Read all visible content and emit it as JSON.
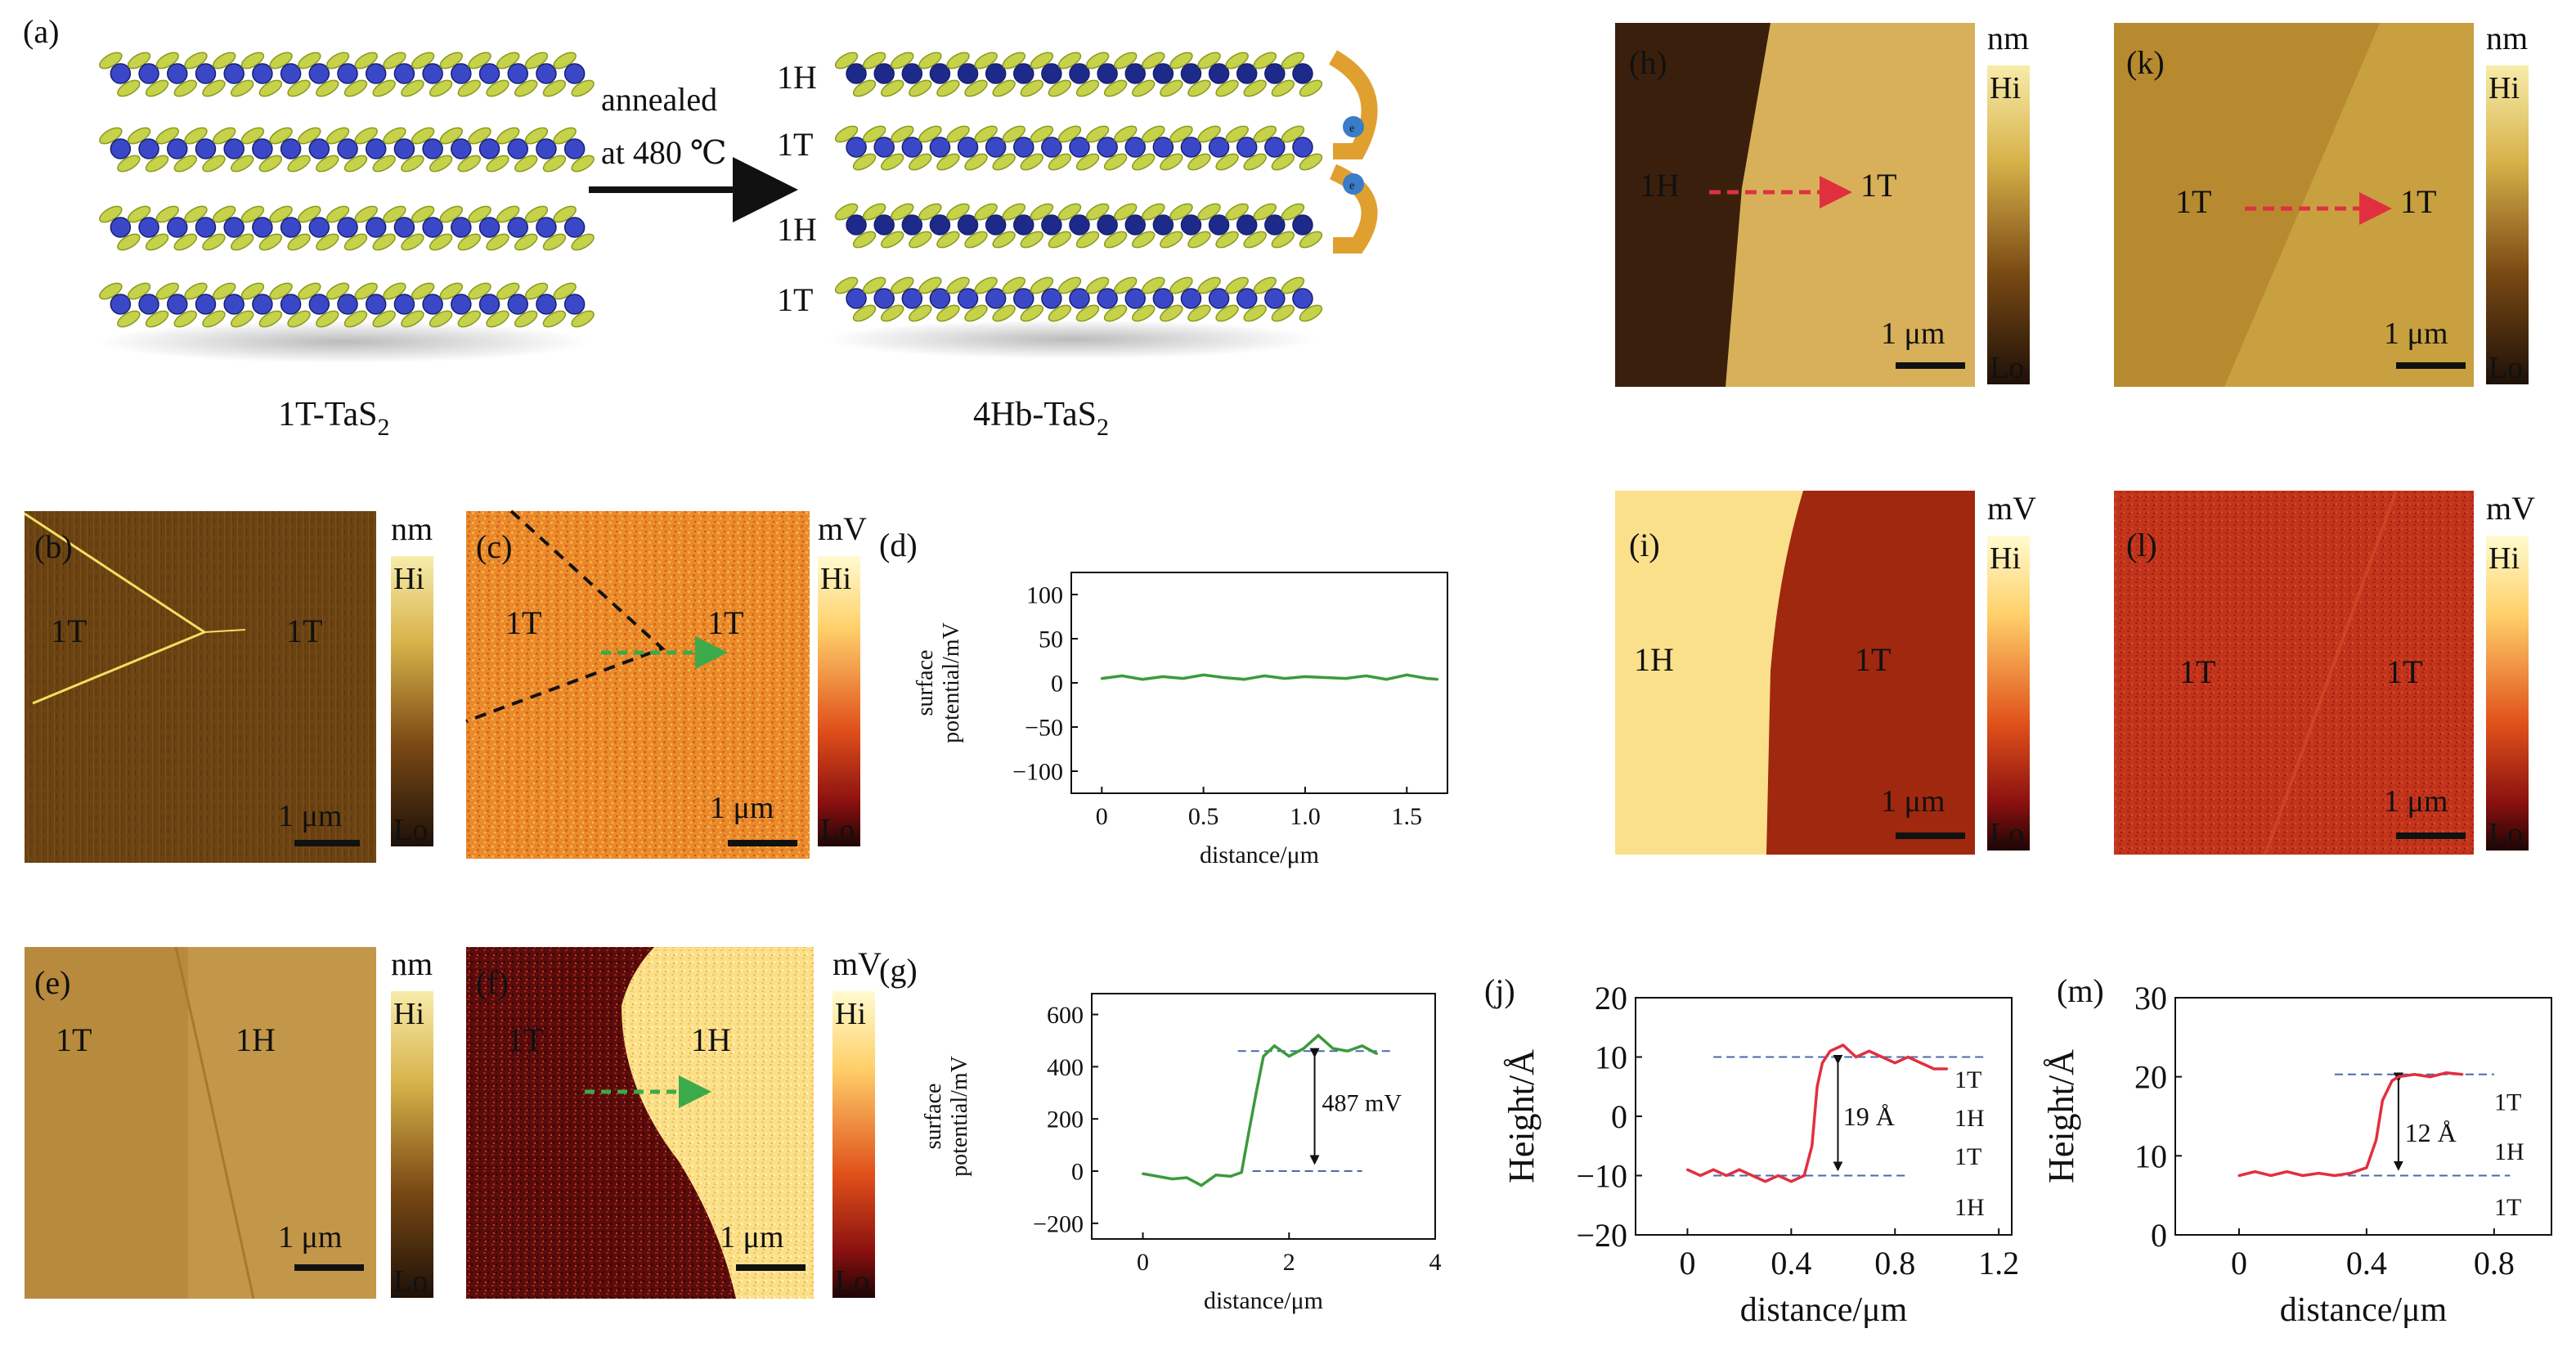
{
  "panel_labels": {
    "a": "(a)",
    "b": "(b)",
    "c": "(c)",
    "d": "(d)",
    "e": "(e)",
    "f": "(f)",
    "g": "(g)",
    "h": "(h)",
    "i": "(i)",
    "j": "(j)",
    "k": "(k)",
    "l": "(l)",
    "m": "(m)"
  },
  "panel_a": {
    "left_caption": "1T-TaS",
    "right_caption": "4Hb-TaS",
    "subscript": "2",
    "arrow_line1": "annealed",
    "arrow_line2": "at 480 ℃",
    "layer_labels": [
      "1H",
      "1T",
      "1H",
      "1T"
    ],
    "electron": "e"
  },
  "scales": {
    "unit_nm": "nm",
    "unit_mv": "mV",
    "hi": "Hi",
    "lo": "Lo",
    "scalebar": "1 μm"
  },
  "colors": {
    "afm_dark": "#2a1808",
    "afm_mid": "#9a6a1c",
    "afm_light": "#f5e39a",
    "kpfm_dark": "#2a0606",
    "kpfm_mid": "#d44a12",
    "kpfm_light": "#fff5b0",
    "green_line": "#3c9a3c",
    "red_line": "#e03040",
    "purple_band": "#d9b6e0",
    "green_band": "#dff0d0"
  },
  "image_labels": {
    "b": [
      "1T",
      "1T"
    ],
    "c": [
      "1T",
      "1T"
    ],
    "e": [
      "1T",
      "1H"
    ],
    "f": [
      "1T",
      "1H"
    ],
    "h": [
      "1H",
      "1T"
    ],
    "i": [
      "1H",
      "1T"
    ],
    "k": [
      "1T",
      "1T"
    ],
    "l": [
      "1T",
      "1T"
    ]
  },
  "chart_data": [
    {
      "id": "d",
      "type": "line",
      "xlabel": "distance/μm",
      "ylabel": [
        "surface",
        "potential/mV"
      ],
      "xlim": [
        -0.15,
        1.7
      ],
      "ylim": [
        -125,
        125
      ],
      "xticks": [
        0,
        0.5,
        1.0,
        1.5
      ],
      "xticklabels": [
        "0",
        "0.5",
        "1.0",
        "1.5"
      ],
      "yticks": [
        100,
        50,
        0,
        -50,
        -100
      ],
      "yticklabels": [
        "100",
        "50",
        "0",
        "−50",
        "−100"
      ],
      "series": [
        {
          "x": [
            0,
            0.1,
            0.2,
            0.3,
            0.4,
            0.5,
            0.6,
            0.7,
            0.8,
            0.9,
            1.0,
            1.1,
            1.2,
            1.3,
            1.4,
            1.5,
            1.6,
            1.65
          ],
          "y": [
            5,
            8,
            4,
            7,
            5,
            9,
            6,
            4,
            8,
            5,
            7,
            6,
            5,
            8,
            4,
            9,
            5,
            4
          ]
        }
      ]
    },
    {
      "id": "g",
      "type": "line",
      "xlabel": "distance/μm",
      "ylabel": [
        "surface",
        "potential/mV"
      ],
      "xlim": [
        -0.7,
        4
      ],
      "ylim": [
        -260,
        680
      ],
      "xticks": [
        0,
        2,
        4
      ],
      "xticklabels": [
        "0",
        "2",
        "4"
      ],
      "yticks": [
        600,
        400,
        200,
        0,
        -200
      ],
      "yticklabels": [
        "600",
        "400",
        "200",
        "0",
        "−200"
      ],
      "annotation": "487 mV",
      "series": [
        {
          "x": [
            0,
            0.2,
            0.4,
            0.6,
            0.8,
            1.0,
            1.2,
            1.35,
            1.45,
            1.55,
            1.65,
            1.8,
            2.0,
            2.2,
            2.4,
            2.6,
            2.8,
            3.0,
            3.2
          ],
          "y": [
            -10,
            -20,
            -30,
            -25,
            -55,
            -15,
            -20,
            -5,
            150,
            300,
            440,
            480,
            440,
            470,
            520,
            470,
            460,
            480,
            450
          ]
        }
      ]
    },
    {
      "id": "j",
      "type": "line",
      "xlabel": "distance/μm",
      "ylabel": "Height/Å",
      "xlim": [
        -0.2,
        1.25
      ],
      "ylim": [
        -20,
        20
      ],
      "xticks": [
        0,
        0.4,
        0.8,
        1.2
      ],
      "xticklabels": [
        "0",
        "0.4",
        "0.8",
        "1.2"
      ],
      "yticks": [
        20,
        10,
        0,
        -10,
        -20
      ],
      "yticklabels": [
        "20",
        "10",
        "0",
        "−10",
        "−20"
      ],
      "annotation": "19 Å",
      "bands": [
        "1T",
        "1H",
        "1T",
        "1H"
      ],
      "series": [
        {
          "x": [
            0,
            0.05,
            0.1,
            0.15,
            0.2,
            0.25,
            0.3,
            0.35,
            0.4,
            0.45,
            0.48,
            0.5,
            0.52,
            0.55,
            0.6,
            0.65,
            0.7,
            0.75,
            0.8,
            0.85,
            0.9,
            0.95,
            1.0
          ],
          "y": [
            -9,
            -10,
            -9,
            -10,
            -9,
            -10,
            -11,
            -10,
            -11,
            -10,
            -5,
            5,
            9,
            11,
            12,
            10,
            11,
            10,
            9,
            10,
            9,
            8,
            8
          ]
        }
      ]
    },
    {
      "id": "m",
      "type": "line",
      "xlabel": "distance/μm",
      "ylabel": "Height/Å",
      "xlim": [
        -0.2,
        0.98
      ],
      "ylim": [
        0,
        30
      ],
      "xticks": [
        0,
        0.4,
        0.8
      ],
      "xticklabels": [
        "0",
        "0.4",
        "0.8"
      ],
      "yticks": [
        30,
        20,
        10,
        0
      ],
      "yticklabels": [
        "30",
        "20",
        "10",
        "0"
      ],
      "annotation": "12 Å",
      "bands": [
        "1T",
        "1H",
        "1T"
      ],
      "series": [
        {
          "x": [
            0,
            0.05,
            0.1,
            0.15,
            0.2,
            0.25,
            0.3,
            0.35,
            0.4,
            0.43,
            0.45,
            0.48,
            0.5,
            0.55,
            0.6,
            0.65,
            0.7
          ],
          "y": [
            7.5,
            8,
            7.5,
            8,
            7.5,
            7.8,
            7.5,
            7.8,
            8.5,
            12,
            17,
            19.5,
            20,
            20.3,
            20,
            20.5,
            20.3
          ]
        }
      ]
    }
  ]
}
